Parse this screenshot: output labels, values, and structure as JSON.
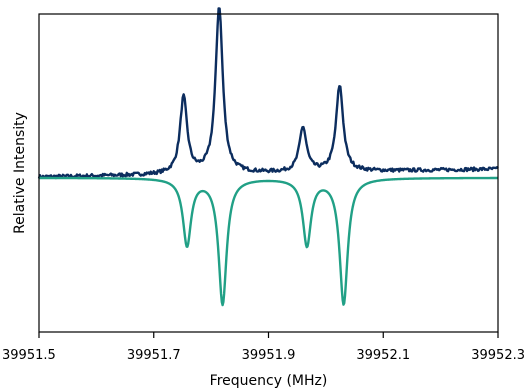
{
  "chart_data": {
    "type": "line",
    "title": "",
    "xlabel": "Frequency (MHz)",
    "ylabel": "Relative Intensity",
    "xlim": [
      39951.5,
      39952.3
    ],
    "ylim": [
      -1.0,
      1.0
    ],
    "x_ticks": [
      39951.5,
      39951.7,
      39951.9,
      39952.1,
      39952.3
    ],
    "x_tick_labels": [
      "39951.5",
      "39951.7",
      "39951.9",
      "39952.1",
      "39952.3"
    ],
    "y_ticks_shown": false,
    "grid": false,
    "legend": "none",
    "series": [
      {
        "color": "#0c2d5e",
        "style": "noisy-experimental",
        "baseline": 0.0,
        "peaks": [
          {
            "x": 39951.752,
            "height": 0.48
          },
          {
            "x": 39951.814,
            "height": 1.05
          },
          {
            "x": 39951.96,
            "height": 0.28
          },
          {
            "x": 39952.024,
            "height": 0.54
          }
        ]
      },
      {
        "color": "#21a086",
        "style": "smooth-simulated",
        "baseline": -0.03,
        "peaks": [
          {
            "x": 39951.758,
            "height": -0.42
          },
          {
            "x": 39951.82,
            "height": -0.79
          },
          {
            "x": 39951.967,
            "height": -0.42
          },
          {
            "x": 39952.031,
            "height": -0.79
          }
        ]
      }
    ]
  }
}
